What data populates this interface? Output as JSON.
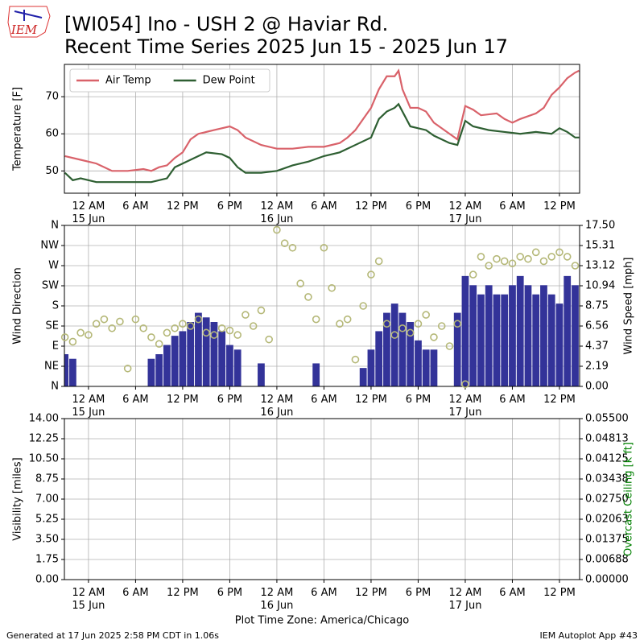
{
  "logo_text": "IEM",
  "footer_left": "Generated at 17 Jun 2025 2:58 PM CDT in 1.06s",
  "footer_right": "IEM Autoplot App #43",
  "chart_data": [
    {
      "type": "line",
      "title": [
        "[WI054] Ino - USH 2 @ Haviar Rd.",
        "Recent Time Series 2025 Jun 15 - 2025 Jun 17"
      ],
      "ylabel": "Temperature [F]",
      "ylim": [
        44,
        78.7
      ],
      "yticks": [
        50,
        60,
        70
      ],
      "grid": true,
      "legend": "upper left",
      "xlim": [
        "2025-06-14T20:56",
        "2025-06-17T14:34"
      ],
      "xticks": [
        {
          "value": "2025-06-15T00:00",
          "label": "12 AM\n15 Jun"
        },
        {
          "value": "2025-06-15T06:00",
          "label": "6 AM"
        },
        {
          "value": "2025-06-15T12:00",
          "label": "12 PM"
        },
        {
          "value": "2025-06-15T18:00",
          "label": "6 PM"
        },
        {
          "value": "2025-06-16T00:00",
          "label": "12 AM\n16 Jun"
        },
        {
          "value": "2025-06-16T06:00",
          "label": "6 AM"
        },
        {
          "value": "2025-06-16T12:00",
          "label": "12 PM"
        },
        {
          "value": "2025-06-16T18:00",
          "label": "6 PM"
        },
        {
          "value": "2025-06-17T00:00",
          "label": "12 AM\n17 Jun"
        },
        {
          "value": "2025-06-17T06:00",
          "label": "6 AM"
        },
        {
          "value": "2025-06-17T12:00",
          "label": "12 PM"
        }
      ],
      "series": [
        {
          "name": "Air Temp",
          "color": "#d9626a",
          "x": [
            "2025-06-14T21:00",
            "2025-06-14T23:00",
            "2025-06-15T01:00",
            "2025-06-15T03:00",
            "2025-06-15T05:00",
            "2025-06-15T07:00",
            "2025-06-15T08:00",
            "2025-06-15T09:00",
            "2025-06-15T10:00",
            "2025-06-15T11:00",
            "2025-06-15T12:00",
            "2025-06-15T13:00",
            "2025-06-15T14:00",
            "2025-06-15T16:00",
            "2025-06-15T18:00",
            "2025-06-15T19:00",
            "2025-06-15T20:00",
            "2025-06-15T22:00",
            "2025-06-16T00:00",
            "2025-06-16T02:00",
            "2025-06-16T04:00",
            "2025-06-16T06:00",
            "2025-06-16T08:00",
            "2025-06-16T09:00",
            "2025-06-16T10:00",
            "2025-06-16T11:00",
            "2025-06-16T12:00",
            "2025-06-16T13:00",
            "2025-06-16T14:00",
            "2025-06-16T15:00",
            "2025-06-16T15:30",
            "2025-06-16T16:00",
            "2025-06-16T17:00",
            "2025-06-16T18:00",
            "2025-06-16T19:00",
            "2025-06-16T20:00",
            "2025-06-16T22:00",
            "2025-06-16T23:00",
            "2025-06-17T00:00",
            "2025-06-17T01:00",
            "2025-06-17T02:00",
            "2025-06-17T04:00",
            "2025-06-17T05:00",
            "2025-06-17T06:00",
            "2025-06-17T07:00",
            "2025-06-17T09:00",
            "2025-06-17T10:00",
            "2025-06-17T11:00",
            "2025-06-17T12:00",
            "2025-06-17T13:00",
            "2025-06-17T14:00",
            "2025-06-17T14:30"
          ],
          "values": [
            54,
            53,
            52,
            50,
            50,
            50.5,
            50,
            51,
            51.5,
            53.5,
            55,
            58.5,
            60,
            61,
            62,
            61,
            59,
            57,
            56,
            56,
            56.5,
            56.5,
            57.5,
            59,
            61,
            64,
            67,
            72,
            75.5,
            75.5,
            77,
            72,
            67,
            67,
            66,
            63,
            60,
            58.5,
            67.5,
            66.5,
            65,
            65.5,
            64,
            63,
            64,
            65.5,
            67,
            70.5,
            72.5,
            75,
            76.5,
            77
          ]
        },
        {
          "name": "Dew Point",
          "color": "#2e5f32",
          "x": [
            "2025-06-14T21:00",
            "2025-06-14T22:00",
            "2025-06-14T23:00",
            "2025-06-15T01:00",
            "2025-06-15T04:00",
            "2025-06-15T08:00",
            "2025-06-15T10:00",
            "2025-06-15T11:00",
            "2025-06-15T12:00",
            "2025-06-15T14:00",
            "2025-06-15T15:00",
            "2025-06-15T17:00",
            "2025-06-15T18:00",
            "2025-06-15T19:00",
            "2025-06-15T20:00",
            "2025-06-15T22:00",
            "2025-06-16T00:00",
            "2025-06-16T02:00",
            "2025-06-16T04:00",
            "2025-06-16T06:00",
            "2025-06-16T08:00",
            "2025-06-16T10:00",
            "2025-06-16T12:00",
            "2025-06-16T13:00",
            "2025-06-16T14:00",
            "2025-06-16T15:00",
            "2025-06-16T15:30",
            "2025-06-16T16:00",
            "2025-06-16T17:00",
            "2025-06-16T18:00",
            "2025-06-16T19:00",
            "2025-06-16T20:00",
            "2025-06-16T22:00",
            "2025-06-16T23:00",
            "2025-06-17T00:00",
            "2025-06-17T01:00",
            "2025-06-17T03:00",
            "2025-06-17T05:00",
            "2025-06-17T07:00",
            "2025-06-17T09:00",
            "2025-06-17T11:00",
            "2025-06-17T12:00",
            "2025-06-17T13:00",
            "2025-06-17T14:00",
            "2025-06-17T14:30"
          ],
          "values": [
            49.5,
            47.5,
            48,
            47,
            47,
            47,
            48,
            51,
            52,
            54,
            55,
            54.5,
            53.5,
            51,
            49.5,
            49.5,
            50,
            51.5,
            52.5,
            54,
            55,
            57,
            59,
            64,
            66,
            67,
            68,
            66,
            62,
            61.5,
            61,
            59.5,
            57.5,
            57,
            63.5,
            62,
            61,
            60.5,
            60,
            60.5,
            60,
            61.5,
            60.5,
            59,
            59
          ]
        }
      ]
    },
    {
      "type": "scatter-bar",
      "ylabel": "Wind Direction",
      "y2label": "Wind Speed [mph]",
      "grid": true,
      "ylim": [
        0,
        360
      ],
      "yticks": [
        {
          "value": 0,
          "label": "N"
        },
        {
          "value": 45,
          "label": "NE"
        },
        {
          "value": 90,
          "label": "E"
        },
        {
          "value": 135,
          "label": "SE"
        },
        {
          "value": 180,
          "label": "S"
        },
        {
          "value": 225,
          "label": "SW"
        },
        {
          "value": 270,
          "label": "W"
        },
        {
          "value": 315,
          "label": "NW"
        },
        {
          "value": 360,
          "label": "N"
        }
      ],
      "y2lim": [
        0,
        17.5
      ],
      "y2ticks": [
        {
          "value": 0,
          "label": "0.00"
        },
        {
          "value": 2.1875,
          "label": "2.19"
        },
        {
          "value": 4.375,
          "label": "4.37"
        },
        {
          "value": 6.5625,
          "label": "6.56"
        },
        8.75,
        {
          "value": 10.9375,
          "label": "10.94"
        },
        {
          "value": 13.125,
          "label": "13.12"
        },
        {
          "value": 15.3125,
          "label": "15.31"
        },
        {
          "value": 17.5,
          "label": "17.50"
        }
      ],
      "xlim": [
        "2025-06-14T20:56",
        "2025-06-17T14:34"
      ],
      "xticks": [
        {
          "value": "2025-06-15T00:00",
          "label": "12 AM\n15 Jun"
        },
        {
          "value": "2025-06-15T06:00",
          "label": "6 AM"
        },
        {
          "value": "2025-06-15T12:00",
          "label": "12 PM"
        },
        {
          "value": "2025-06-15T18:00",
          "label": "6 PM"
        },
        {
          "value": "2025-06-16T00:00",
          "label": "12 AM\n16 Jun"
        },
        {
          "value": "2025-06-16T06:00",
          "label": "6 AM"
        },
        {
          "value": "2025-06-16T12:00",
          "label": "12 PM"
        },
        {
          "value": "2025-06-16T18:00",
          "label": "6 PM"
        },
        {
          "value": "2025-06-17T00:00",
          "label": "12 AM\n17 Jun"
        },
        {
          "value": "2025-06-17T06:00",
          "label": "6 AM"
        },
        {
          "value": "2025-06-17T12:00",
          "label": "12 PM"
        }
      ],
      "x": [
        "2025-06-14T21:00",
        "2025-06-14T22:00",
        "2025-06-14T23:00",
        "2025-06-15T00:00",
        "2025-06-15T01:00",
        "2025-06-15T02:00",
        "2025-06-15T03:00",
        "2025-06-15T04:00",
        "2025-06-15T05:00",
        "2025-06-15T06:00",
        "2025-06-15T07:00",
        "2025-06-15T08:00",
        "2025-06-15T09:00",
        "2025-06-15T10:00",
        "2025-06-15T11:00",
        "2025-06-15T12:00",
        "2025-06-15T13:00",
        "2025-06-15T14:00",
        "2025-06-15T15:00",
        "2025-06-15T16:00",
        "2025-06-15T17:00",
        "2025-06-15T18:00",
        "2025-06-15T19:00",
        "2025-06-15T20:00",
        "2025-06-15T21:00",
        "2025-06-15T22:00",
        "2025-06-15T23:00",
        "2025-06-16T00:00",
        "2025-06-16T01:00",
        "2025-06-16T02:00",
        "2025-06-16T03:00",
        "2025-06-16T04:00",
        "2025-06-16T05:00",
        "2025-06-16T06:00",
        "2025-06-16T07:00",
        "2025-06-16T08:00",
        "2025-06-16T09:00",
        "2025-06-16T10:00",
        "2025-06-16T11:00",
        "2025-06-16T12:00",
        "2025-06-16T13:00",
        "2025-06-16T14:00",
        "2025-06-16T15:00",
        "2025-06-16T16:00",
        "2025-06-16T17:00",
        "2025-06-16T18:00",
        "2025-06-16T19:00",
        "2025-06-16T20:00",
        "2025-06-16T21:00",
        "2025-06-16T22:00",
        "2025-06-16T23:00",
        "2025-06-17T00:00",
        "2025-06-17T01:00",
        "2025-06-17T02:00",
        "2025-06-17T03:00",
        "2025-06-17T04:00",
        "2025-06-17T05:00",
        "2025-06-17T06:00",
        "2025-06-17T07:00",
        "2025-06-17T08:00",
        "2025-06-17T09:00",
        "2025-06-17T10:00",
        "2025-06-17T11:00",
        "2025-06-17T12:00",
        "2025-06-17T13:00",
        "2025-06-17T14:00"
      ],
      "series": [
        {
          "type": "scatter",
          "color": "#b5b878",
          "values": [
            110,
            100,
            120,
            115,
            140,
            150,
            130,
            145,
            40,
            150,
            130,
            110,
            95,
            120,
            130,
            140,
            135,
            150,
            120,
            115,
            130,
            125,
            115,
            160,
            135,
            170,
            105,
            350,
            320,
            310,
            230,
            200,
            150,
            310,
            220,
            140,
            150,
            60,
            180,
            250,
            280,
            140,
            115,
            130,
            120,
            140,
            160,
            110,
            135,
            90,
            140,
            5,
            250,
            290,
            270,
            285,
            280,
            275,
            290,
            285,
            300,
            280,
            290,
            300,
            290,
            270
          ]
        },
        {
          "type": "bar",
          "axis": "y2",
          "color": "#333399",
          "values": [
            3.5,
            3,
            0,
            0,
            0,
            0,
            0,
            0,
            0,
            0,
            0,
            3,
            3.5,
            4.5,
            5.5,
            6,
            7,
            8,
            7.5,
            7,
            6,
            4.5,
            4,
            0,
            0,
            2.5,
            0,
            0,
            0,
            0,
            0,
            0,
            2.5,
            0,
            0,
            0,
            0,
            0,
            2,
            4,
            6,
            8,
            9,
            8,
            7,
            5,
            4,
            4,
            0,
            0,
            8,
            12,
            11,
            10,
            11,
            10,
            10,
            11,
            12,
            11,
            10,
            11,
            10,
            9,
            12,
            11
          ]
        }
      ]
    },
    {
      "type": "empty",
      "ylabel": "Visibility [miles]",
      "y2label": "Overcast Ceiling [k ft]",
      "y2label_color": "green",
      "grid": true,
      "xlabel": "Plot Time Zone: America/Chicago",
      "ylim": [
        0,
        14
      ],
      "yticks": [
        {
          "value": 0,
          "label": "0.00"
        },
        1.75,
        {
          "value": 3.5,
          "label": "3.50"
        },
        5.25,
        {
          "value": 7,
          "label": "7.00"
        },
        8.75,
        {
          "value": 10.5,
          "label": "10.50"
        },
        12.25,
        {
          "value": 14,
          "label": "14.00"
        }
      ],
      "y2lim": [
        0,
        0.055
      ],
      "y2ticks": [
        {
          "value": 0,
          "label": "0.00000"
        },
        {
          "value": 0.006875,
          "label": "0.00688"
        },
        0.01375,
        {
          "value": 0.020625,
          "label": "0.02063"
        },
        {
          "value": 0.0275,
          "label": "0.02750"
        },
        {
          "value": 0.034375,
          "label": "0.03438"
        },
        0.04125,
        {
          "value": 0.048125,
          "label": "0.04813"
        },
        {
          "value": 0.055,
          "label": "0.05500"
        }
      ],
      "xlim": [
        "2025-06-14T20:56",
        "2025-06-17T14:34"
      ],
      "xticks": [
        {
          "value": "2025-06-15T00:00",
          "label": "12 AM\n15 Jun"
        },
        {
          "value": "2025-06-15T06:00",
          "label": "6 AM"
        },
        {
          "value": "2025-06-15T12:00",
          "label": "12 PM"
        },
        {
          "value": "2025-06-15T18:00",
          "label": "6 PM"
        },
        {
          "value": "2025-06-16T00:00",
          "label": "12 AM\n16 Jun"
        },
        {
          "value": "2025-06-16T06:00",
          "label": "6 AM"
        },
        {
          "value": "2025-06-16T12:00",
          "label": "12 PM"
        },
        {
          "value": "2025-06-16T18:00",
          "label": "6 PM"
        },
        {
          "value": "2025-06-17T00:00",
          "label": "12 AM\n17 Jun"
        },
        {
          "value": "2025-06-17T06:00",
          "label": "6 AM"
        },
        {
          "value": "2025-06-17T12:00",
          "label": "12 PM"
        }
      ]
    }
  ]
}
